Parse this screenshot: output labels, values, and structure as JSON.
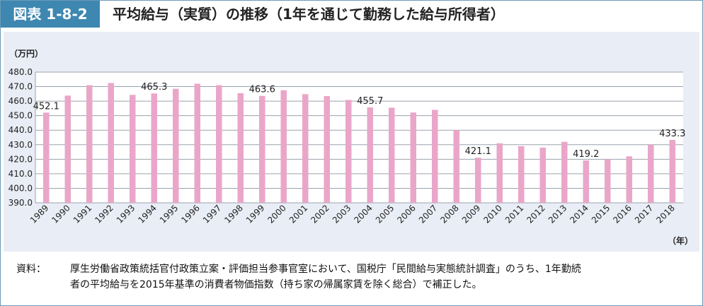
{
  "header": {
    "badge": "図表 1-8-2",
    "title": "平均給与（実質）の推移（1年を通じて勤務した給与所得者）"
  },
  "colors": {
    "bar": "#eaa6c8",
    "badge": "#3e87b1",
    "panel": "#e9edf5"
  },
  "chart_data": {
    "type": "bar",
    "ylabel": "（万円）",
    "xlabel": "（年）",
    "ylim": [
      390,
      480
    ],
    "yticks": [
      "390.0",
      "400.0",
      "410.0",
      "420.0",
      "430.0",
      "440.0",
      "450.0",
      "460.0",
      "470.0",
      "480.0"
    ],
    "grid": true,
    "categories": [
      "1989",
      "1990",
      "1991",
      "1992",
      "1993",
      "1994",
      "1995",
      "1996",
      "1997",
      "1998",
      "1999",
      "2000",
      "2001",
      "2002",
      "2003",
      "2004",
      "2005",
      "2006",
      "2007",
      "2008",
      "2009",
      "2010",
      "2011",
      "2012",
      "2013",
      "2014",
      "2015",
      "2016",
      "2017",
      "2018"
    ],
    "values": [
      452.1,
      463.8,
      471.0,
      472.5,
      464.3,
      465.3,
      468.5,
      472.0,
      471.0,
      465.5,
      463.6,
      467.5,
      464.8,
      463.5,
      460.8,
      455.7,
      455.5,
      452.2,
      454.0,
      440.0,
      421.1,
      431.0,
      429.0,
      428.0,
      432.0,
      419.2,
      420.0,
      422.0,
      430.0,
      433.3
    ],
    "data_labels": [
      {
        "category": "1989",
        "text": "452.1"
      },
      {
        "category": "1994",
        "text": "465.3"
      },
      {
        "category": "1999",
        "text": "463.6"
      },
      {
        "category": "2004",
        "text": "455.7"
      },
      {
        "category": "2009",
        "text": "421.1"
      },
      {
        "category": "2014",
        "text": "419.2"
      },
      {
        "category": "2018",
        "text": "433.3"
      }
    ]
  },
  "source": {
    "label": "資料：",
    "line1": "厚生労働省政策統括官付政策立案・評価担当参事官室において、国税庁「民間給与実態統計調査」のうち、1年勤続",
    "line2": "者の平均給与を2015年基準の消費者物価指数（持ち家の帰属家賃を除く総合）で補正した。"
  }
}
